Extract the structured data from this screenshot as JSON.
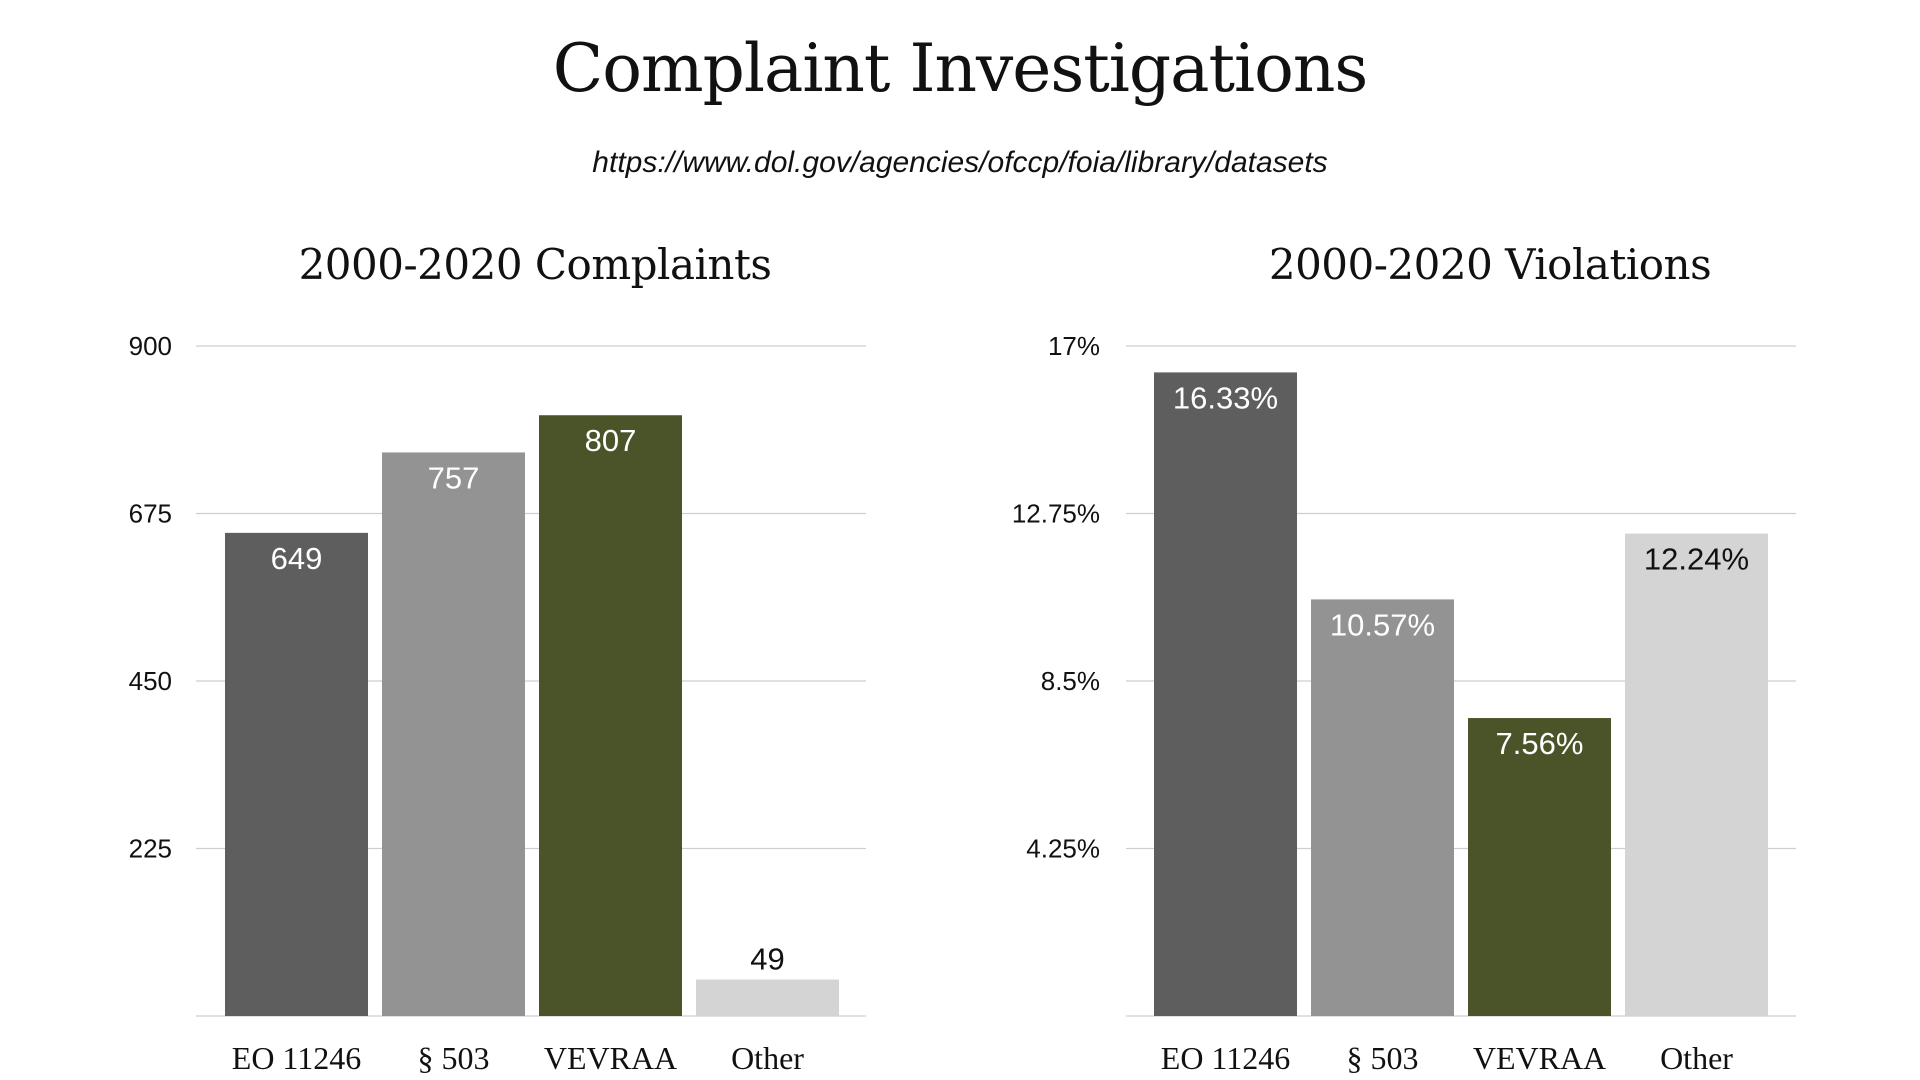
{
  "title": "Complaint Investigations",
  "subtitle": "https://www.dol.gov/agencies/ofccp/foia/library/datasets",
  "chart_data": [
    {
      "type": "bar",
      "title": "2000-2020 Complaints",
      "categories": [
        "EO 11246",
        "§ 503",
        "VEVRAA",
        "Other"
      ],
      "values": [
        649,
        757,
        807,
        49
      ],
      "data_labels": [
        "649",
        "757",
        "807",
        "49"
      ],
      "ylim": [
        0,
        900
      ],
      "yticks": [
        225,
        450,
        675,
        900
      ],
      "ytick_labels": [
        "225",
        "450",
        "675",
        "900"
      ],
      "colors": [
        "#5e5e5e",
        "#939393",
        "#4b5429",
        "#d4d4d4"
      ],
      "label_colors": [
        "#ffffff",
        "#ffffff",
        "#ffffff",
        "#111111"
      ],
      "grid": true,
      "legend": "none"
    },
    {
      "type": "bar",
      "title": "2000-2020 Violations",
      "categories": [
        "EO 11246",
        "§ 503",
        "VEVRAA",
        "Other"
      ],
      "values": [
        16.33,
        10.57,
        7.56,
        12.24
      ],
      "data_labels": [
        "16.33%",
        "10.57%",
        "7.56%",
        "12.24%"
      ],
      "ylim": [
        0,
        17
      ],
      "yticks": [
        4.25,
        8.5,
        12.75,
        17
      ],
      "ytick_labels": [
        "4.25%",
        "8.5%",
        "12.75%",
        "17%"
      ],
      "colors": [
        "#5e5e5e",
        "#939393",
        "#4b5429",
        "#d4d4d4"
      ],
      "label_colors": [
        "#ffffff",
        "#ffffff",
        "#ffffff",
        "#111111"
      ],
      "grid": true,
      "legend": "none"
    }
  ]
}
